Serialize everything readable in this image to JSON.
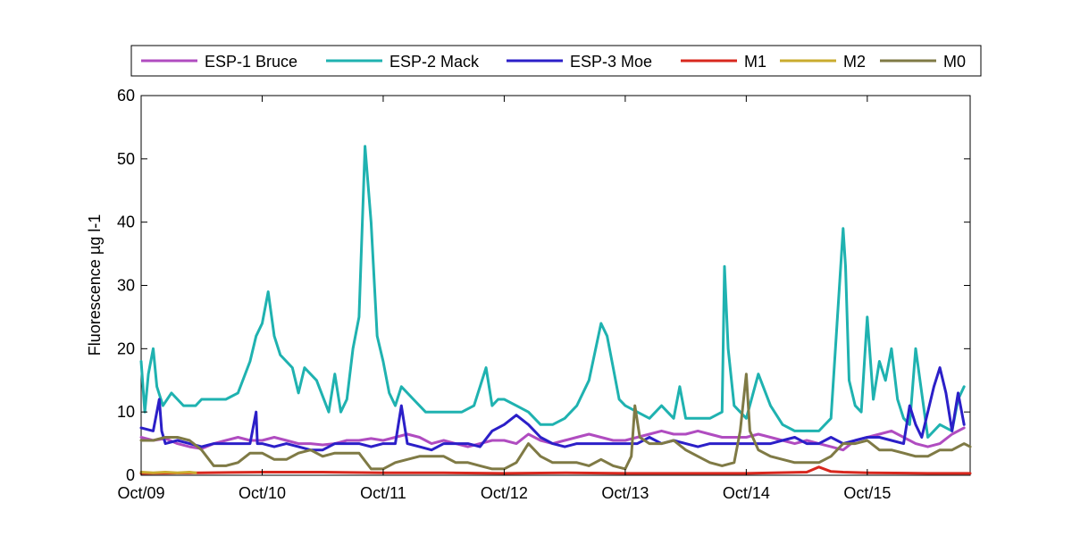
{
  "chart_data": {
    "type": "line",
    "title": "",
    "xlabel": "",
    "ylabel": "Fluorescence µg l-1",
    "ylim": [
      0,
      60
    ],
    "xlim": [
      0,
      6.85
    ],
    "yticks": [
      0,
      10,
      20,
      30,
      40,
      50,
      60
    ],
    "xticks": [
      {
        "x": 0,
        "label": "Oct/09"
      },
      {
        "x": 1,
        "label": "Oct/10"
      },
      {
        "x": 2,
        "label": "Oct/11"
      },
      {
        "x": 3,
        "label": "Oct/12"
      },
      {
        "x": 4,
        "label": "Oct/13"
      },
      {
        "x": 5,
        "label": "Oct/14"
      },
      {
        "x": 6,
        "label": "Oct/15"
      }
    ],
    "grid": false,
    "legend": {
      "placement": "top-horizontal-outside"
    },
    "series": [
      {
        "name": "ESP-1 Bruce",
        "color": "#b04cc0",
        "x": [
          0.0,
          0.1,
          0.2,
          0.3,
          0.4,
          0.5,
          0.6,
          0.7,
          0.8,
          0.9,
          1.0,
          1.1,
          1.2,
          1.3,
          1.4,
          1.5,
          1.6,
          1.7,
          1.8,
          1.9,
          2.0,
          2.1,
          2.2,
          2.3,
          2.4,
          2.5,
          2.6,
          2.7,
          2.8,
          2.9,
          3.0,
          3.1,
          3.2,
          3.3,
          3.4,
          3.5,
          3.6,
          3.7,
          3.8,
          3.9,
          4.0,
          4.1,
          4.2,
          4.3,
          4.4,
          4.5,
          4.6,
          4.7,
          4.8,
          4.9,
          5.0,
          5.1,
          5.2,
          5.3,
          5.4,
          5.5,
          5.6,
          5.7,
          5.8,
          5.9,
          6.0,
          6.1,
          6.2,
          6.3,
          6.4,
          6.5,
          6.6,
          6.7,
          6.8
        ],
        "y": [
          6,
          5.5,
          5.8,
          5,
          4.5,
          4.2,
          5,
          5.5,
          6,
          5.5,
          5.5,
          6,
          5.5,
          5,
          5,
          4.8,
          5,
          5.5,
          5.5,
          5.8,
          5.5,
          6,
          6.5,
          6,
          5,
          5.5,
          5,
          4.5,
          5,
          5.5,
          5.5,
          5,
          6.5,
          5.5,
          5,
          5.5,
          6,
          6.5,
          6,
          5.5,
          5.5,
          6,
          6.5,
          7,
          6.5,
          6.5,
          7,
          6.5,
          6,
          6,
          6,
          6.5,
          6,
          5.5,
          5,
          5.5,
          5,
          4.5,
          4,
          5.5,
          6,
          6.5,
          7,
          6,
          5,
          4.5,
          5,
          6.5,
          7.5
        ]
      },
      {
        "name": "ESP-2 Mack",
        "color": "#1fb2b0",
        "x": [
          0.0,
          0.03,
          0.06,
          0.1,
          0.13,
          0.18,
          0.25,
          0.35,
          0.45,
          0.5,
          0.6,
          0.7,
          0.8,
          0.9,
          0.95,
          1.0,
          1.05,
          1.1,
          1.15,
          1.25,
          1.3,
          1.35,
          1.45,
          1.55,
          1.6,
          1.65,
          1.7,
          1.75,
          1.8,
          1.85,
          1.9,
          1.95,
          2.0,
          2.05,
          2.1,
          2.15,
          2.25,
          2.35,
          2.45,
          2.55,
          2.65,
          2.75,
          2.85,
          2.9,
          2.95,
          3.0,
          3.1,
          3.2,
          3.3,
          3.4,
          3.5,
          3.6,
          3.7,
          3.8,
          3.85,
          3.9,
          3.95,
          4.0,
          4.1,
          4.2,
          4.3,
          4.4,
          4.45,
          4.5,
          4.6,
          4.7,
          4.8,
          4.82,
          4.85,
          4.9,
          5.0,
          5.1,
          5.2,
          5.3,
          5.4,
          5.5,
          5.6,
          5.7,
          5.75,
          5.8,
          5.82,
          5.85,
          5.9,
          5.95,
          6.0,
          6.05,
          6.1,
          6.15,
          6.2,
          6.25,
          6.3,
          6.35,
          6.4,
          6.5,
          6.6,
          6.7,
          6.75,
          6.8
        ],
        "y": [
          18,
          10,
          16,
          20,
          14,
          11,
          13,
          11,
          11,
          12,
          12,
          12,
          13,
          18,
          22,
          24,
          29,
          22,
          19,
          17,
          13,
          17,
          15,
          10,
          16,
          10,
          12,
          20,
          25,
          52,
          40,
          22,
          18,
          13,
          11,
          14,
          12,
          10,
          10,
          10,
          10,
          11,
          17,
          11,
          12,
          12,
          11,
          10,
          8,
          8,
          9,
          11,
          15,
          24,
          22,
          17,
          12,
          11,
          10,
          9,
          11,
          9,
          14,
          9,
          9,
          9,
          10,
          33,
          20,
          11,
          9,
          16,
          11,
          8,
          7,
          7,
          7,
          9,
          24,
          39,
          33,
          15,
          11,
          10,
          25,
          12,
          18,
          15,
          20,
          12,
          9,
          8,
          20,
          6,
          8,
          7,
          12,
          14
        ]
      },
      {
        "name": "ESP-3 Moe",
        "color": "#2b1fc8",
        "x": [
          0.0,
          0.1,
          0.15,
          0.17,
          0.2,
          0.3,
          0.4,
          0.5,
          0.6,
          0.7,
          0.8,
          0.9,
          0.95,
          0.96,
          1.0,
          1.1,
          1.2,
          1.3,
          1.4,
          1.5,
          1.6,
          1.7,
          1.8,
          1.9,
          2.0,
          2.1,
          2.15,
          2.2,
          2.3,
          2.4,
          2.5,
          2.6,
          2.7,
          2.8,
          2.9,
          3.0,
          3.1,
          3.2,
          3.3,
          3.4,
          3.5,
          3.6,
          3.7,
          3.8,
          3.9,
          4.0,
          4.1,
          4.2,
          4.3,
          4.4,
          4.5,
          4.6,
          4.7,
          4.8,
          4.9,
          5.0,
          5.1,
          5.2,
          5.3,
          5.4,
          5.5,
          5.6,
          5.7,
          5.8,
          5.9,
          6.0,
          6.1,
          6.2,
          6.3,
          6.35,
          6.4,
          6.45,
          6.5,
          6.55,
          6.6,
          6.65,
          6.7,
          6.75,
          6.8
        ],
        "y": [
          7.5,
          7,
          12,
          7,
          5,
          5.5,
          5,
          4.5,
          5,
          5,
          5,
          5,
          10,
          5,
          5,
          4.5,
          5,
          4.5,
          4,
          4,
          5,
          5,
          5,
          4.5,
          5,
          5,
          11,
          5,
          4.5,
          4,
          5,
          5,
          5,
          4.5,
          7,
          8,
          9.5,
          8,
          6,
          5,
          4.5,
          5,
          5,
          5,
          5,
          5,
          5,
          6,
          5,
          5.5,
          5,
          4.5,
          5,
          5,
          5,
          5,
          5,
          5,
          5.5,
          6,
          5,
          5,
          6,
          5,
          5.5,
          6,
          6,
          5.5,
          5,
          11,
          8,
          6,
          10,
          14,
          17,
          13,
          7,
          13,
          8
        ]
      },
      {
        "name": "M1",
        "color": "#d8281e",
        "x": [
          0.0,
          0.5,
          1.0,
          1.5,
          2.0,
          2.5,
          3.0,
          3.5,
          4.0,
          4.5,
          5.0,
          5.5,
          5.6,
          5.7,
          5.8,
          6.0,
          6.5,
          6.85
        ],
        "y": [
          0.3,
          0.4,
          0.5,
          0.5,
          0.4,
          0.4,
          0.3,
          0.4,
          0.3,
          0.3,
          0.3,
          0.5,
          1.3,
          0.6,
          0.5,
          0.4,
          0.3,
          0.3
        ]
      },
      {
        "name": "M2",
        "color": "#c9ab2e",
        "x": [
          0.0,
          0.1,
          0.2,
          0.3,
          0.4,
          0.45
        ],
        "y": [
          0.5,
          0.4,
          0.5,
          0.4,
          0.5,
          0.4
        ]
      },
      {
        "name": "M0",
        "color": "#7f7a45",
        "x": [
          0.0,
          0.1,
          0.2,
          0.3,
          0.4,
          0.5,
          0.6,
          0.7,
          0.8,
          0.9,
          1.0,
          1.1,
          1.2,
          1.3,
          1.4,
          1.5,
          1.6,
          1.7,
          1.8,
          1.9,
          2.0,
          2.1,
          2.2,
          2.3,
          2.4,
          2.5,
          2.6,
          2.7,
          2.8,
          2.9,
          3.0,
          3.1,
          3.2,
          3.3,
          3.4,
          3.5,
          3.6,
          3.7,
          3.8,
          3.9,
          4.0,
          4.05,
          4.08,
          4.12,
          4.2,
          4.3,
          4.4,
          4.5,
          4.6,
          4.7,
          4.8,
          4.9,
          4.95,
          5.0,
          5.03,
          5.1,
          5.2,
          5.3,
          5.4,
          5.5,
          5.6,
          5.7,
          5.8,
          5.9,
          6.0,
          6.1,
          6.2,
          6.3,
          6.4,
          6.5,
          6.6,
          6.7,
          6.8,
          6.85
        ],
        "y": [
          5.5,
          5.5,
          6,
          6,
          5.5,
          4,
          1.5,
          1.5,
          2,
          3.5,
          3.5,
          2.5,
          2.5,
          3.5,
          4,
          3,
          3.5,
          3.5,
          3.5,
          1,
          1,
          2,
          2.5,
          3,
          3,
          3,
          2,
          2,
          1.5,
          1,
          1,
          2,
          5,
          3,
          2,
          2,
          2,
          1.5,
          2.5,
          1.5,
          1,
          3,
          11,
          6,
          5,
          5,
          5.5,
          4,
          3,
          2,
          1.5,
          2,
          7,
          16,
          7,
          4,
          3,
          2.5,
          2,
          2,
          2,
          3,
          5,
          5,
          5.5,
          4,
          4,
          3.5,
          3,
          3,
          4,
          4,
          5,
          4.5
        ]
      }
    ]
  }
}
